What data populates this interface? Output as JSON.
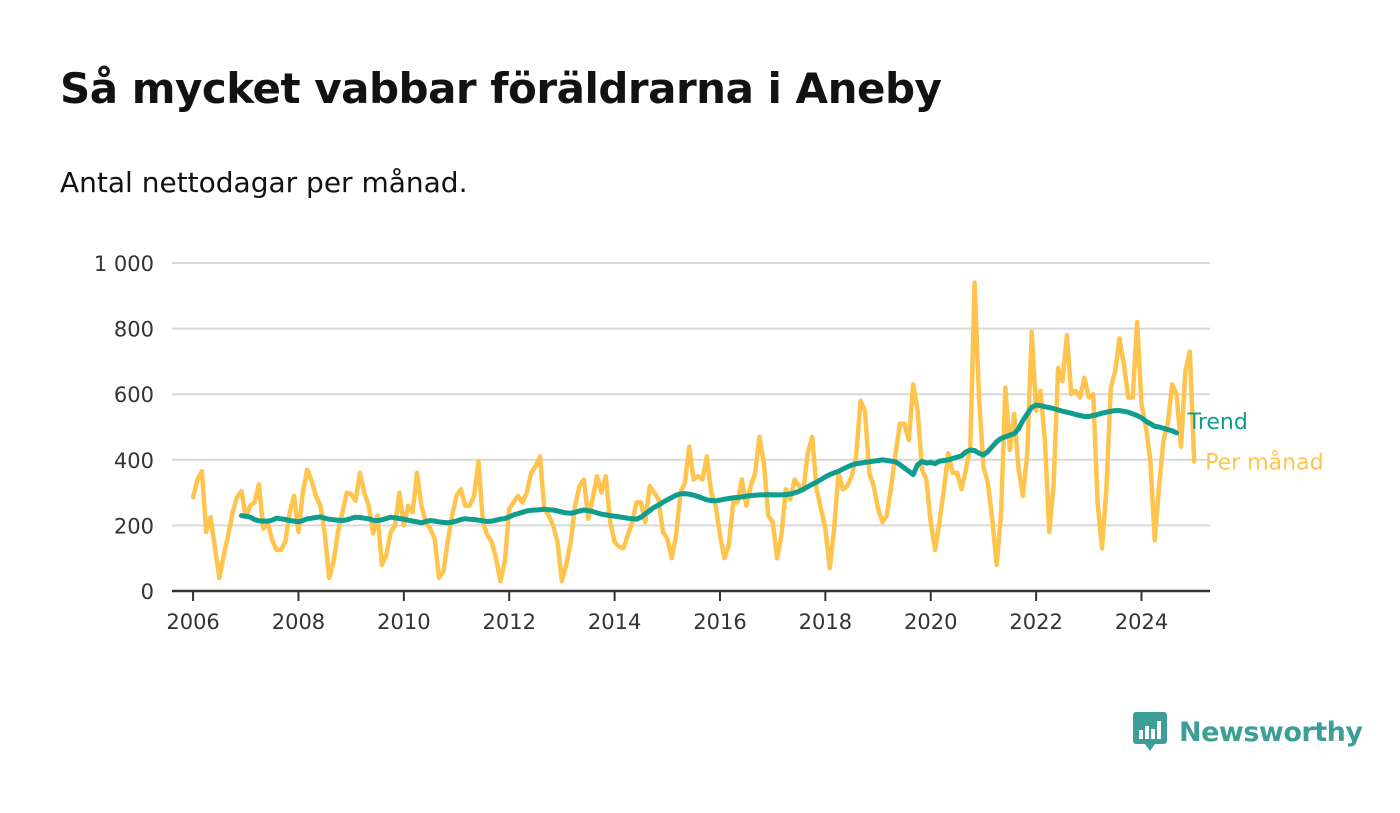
{
  "header": {
    "title": "Så mycket vabbar föräldrarna i Aneby",
    "subtitle": "Antal nettodagar per månad."
  },
  "brand": {
    "name": "Newsworthy",
    "icon": "bar-chart-icon"
  },
  "colors": {
    "monthly": "#ffc44d",
    "trend": "#0e9d8e",
    "grid": "#d9d9d9",
    "axis": "#333333",
    "brand": "#3d9e98"
  },
  "chart_data": {
    "type": "line",
    "title": "Så mycket vabbar föräldrarna i Aneby",
    "subtitle": "Antal nettodagar per månad.",
    "xlabel": "",
    "ylabel": "",
    "xlim": [
      2005.6,
      2025.3
    ],
    "ylim": [
      0,
      1000
    ],
    "x_ticks": [
      2006,
      2008,
      2010,
      2012,
      2014,
      2016,
      2018,
      2020,
      2022,
      2024
    ],
    "x_tick_labels": [
      "2006",
      "2008",
      "2010",
      "2012",
      "2014",
      "2016",
      "2018",
      "2020",
      "2022",
      "2024"
    ],
    "y_ticks": [
      0,
      200,
      400,
      600,
      800,
      1000
    ],
    "y_tick_labels": [
      "0",
      "200",
      "400",
      "600",
      "800",
      "1 000"
    ],
    "grid": true,
    "legend": "inline labels at right end of lines",
    "series": [
      {
        "name": "Per månad",
        "color": "#ffc44d",
        "start": 2006.0,
        "step": 0.0833333,
        "values": [
          285,
          340,
          365,
          180,
          225,
          130,
          40,
          110,
          170,
          240,
          285,
          305,
          225,
          260,
          270,
          325,
          190,
          210,
          155,
          125,
          125,
          150,
          240,
          290,
          180,
          300,
          370,
          335,
          290,
          260,
          175,
          40,
          90,
          180,
          240,
          300,
          295,
          275,
          360,
          300,
          260,
          175,
          230,
          80,
          110,
          180,
          200,
          300,
          200,
          260,
          240,
          360,
          260,
          210,
          190,
          160,
          40,
          60,
          150,
          230,
          290,
          310,
          260,
          260,
          290,
          395,
          210,
          170,
          150,
          100,
          30,
          90,
          250,
          270,
          290,
          270,
          300,
          360,
          380,
          410,
          250,
          230,
          200,
          150,
          30,
          80,
          150,
          260,
          320,
          340,
          220,
          280,
          350,
          300,
          350,
          210,
          150,
          135,
          130,
          170,
          210,
          270,
          270,
          210,
          320,
          300,
          280,
          180,
          160,
          100,
          170,
          300,
          330,
          440,
          340,
          350,
          340,
          410,
          300,
          260,
          170,
          100,
          140,
          270,
          270,
          340,
          260,
          320,
          360,
          470,
          390,
          230,
          210,
          100,
          170,
          310,
          280,
          340,
          320,
          310,
          420,
          470,
          310,
          250,
          190,
          70,
          190,
          360,
          310,
          320,
          350,
          410,
          580,
          550,
          360,
          320,
          250,
          210,
          230,
          320,
          420,
          510,
          510,
          460,
          630,
          550,
          370,
          340,
          210,
          125,
          210,
          310,
          420,
          360,
          360,
          310,
          370,
          440,
          940,
          590,
          380,
          330,
          220,
          80,
          230,
          620,
          430,
          540,
          370,
          290,
          420,
          790,
          550,
          610,
          460,
          180,
          330,
          680,
          640,
          780,
          600,
          610,
          590,
          650,
          590,
          600,
          270,
          130,
          310,
          620,
          670,
          770,
          690,
          590,
          590,
          820,
          570,
          500,
          400,
          155,
          320,
          460,
          510,
          630,
          600,
          440,
          670,
          730,
          395
        ]
      },
      {
        "name": "Trend",
        "color": "#0e9d8e",
        "start": 2006.9167,
        "step": 0.0833333,
        "values": [
          230,
          228,
          225,
          218,
          214,
          213,
          213,
          216,
          222,
          220,
          218,
          215,
          213,
          211,
          215,
          220,
          222,
          224,
          226,
          222,
          219,
          217,
          216,
          215,
          217,
          221,
          225,
          224,
          222,
          220,
          216,
          215,
          217,
          221,
          225,
          223,
          221,
          219,
          216,
          213,
          211,
          208,
          212,
          215,
          213,
          211,
          209,
          208,
          210,
          213,
          218,
          220,
          219,
          218,
          216,
          214,
          212,
          213,
          216,
          219,
          221,
          226,
          232,
          236,
          240,
          244,
          246,
          247,
          248,
          249,
          248,
          247,
          244,
          241,
          238,
          237,
          240,
          244,
          247,
          245,
          242,
          238,
          234,
          232,
          230,
          228,
          226,
          224,
          222,
          220,
          219,
          225,
          235,
          245,
          255,
          262,
          270,
          278,
          285,
          292,
          296,
          297,
          295,
          292,
          288,
          283,
          278,
          276,
          275,
          277,
          280,
          282,
          284,
          285,
          287,
          289,
          291,
          292,
          293,
          293,
          294,
          293,
          293,
          293,
          294,
          296,
          299,
          304,
          310,
          318,
          325,
          332,
          340,
          348,
          355,
          360,
          365,
          372,
          378,
          384,
          388,
          390,
          392,
          394,
          396,
          398,
          400,
          398,
          396,
          394,
          385,
          375,
          365,
          355,
          385,
          395,
          390,
          392,
          388,
          396,
          398,
          400,
          404,
          408,
          412,
          424,
          430,
          428,
          420,
          415,
          425,
          440,
          455,
          465,
          470,
          475,
          480,
          495,
          520,
          540,
          560,
          567,
          565,
          562,
          559,
          556,
          552,
          548,
          545,
          542,
          538,
          535,
          532,
          532,
          535,
          538,
          542,
          545,
          548,
          550,
          550,
          548,
          545,
          540,
          535,
          528,
          518,
          510,
          502,
          500,
          496,
          492,
          488,
          482
        ]
      }
    ]
  }
}
